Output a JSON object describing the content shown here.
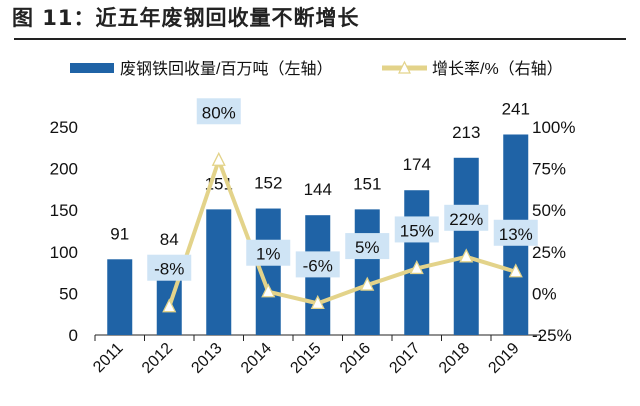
{
  "title": "图 11：近五年废钢回收量不断增长",
  "chart_data": {
    "type": "bar+line",
    "title": "图 11：近五年废钢回收量不断增长",
    "categories": [
      "2011",
      "2012",
      "2013",
      "2014",
      "2015",
      "2016",
      "2017",
      "2018",
      "2019"
    ],
    "series": [
      {
        "name": "废钢铁回收量/百万吨（左轴）",
        "type": "bar",
        "axis": "left",
        "color": "#1f63a6",
        "values": [
          91,
          84,
          151,
          152,
          144,
          151,
          174,
          213,
          241
        ]
      },
      {
        "name": "增长率/%（右轴）",
        "type": "line",
        "axis": "right",
        "color": "#e3d38a",
        "values": [
          null,
          -8,
          80,
          1,
          -6,
          5,
          15,
          22,
          13
        ],
        "labels": [
          "",
          "-8%",
          "80%",
          "1%",
          "-6%",
          "5%",
          "15%",
          "22%",
          "13%"
        ]
      }
    ],
    "left_axis": {
      "min": 0,
      "max": 250,
      "ticks": [
        "0",
        "50",
        "100",
        "150",
        "200",
        "250"
      ]
    },
    "right_axis": {
      "min": -25,
      "max": 100,
      "ticks": [
        "-25%",
        "0%",
        "25%",
        "50%",
        "75%",
        "100%"
      ]
    },
    "legend_position": "top",
    "grid": false,
    "label_box_color": "#cfe4f5"
  }
}
